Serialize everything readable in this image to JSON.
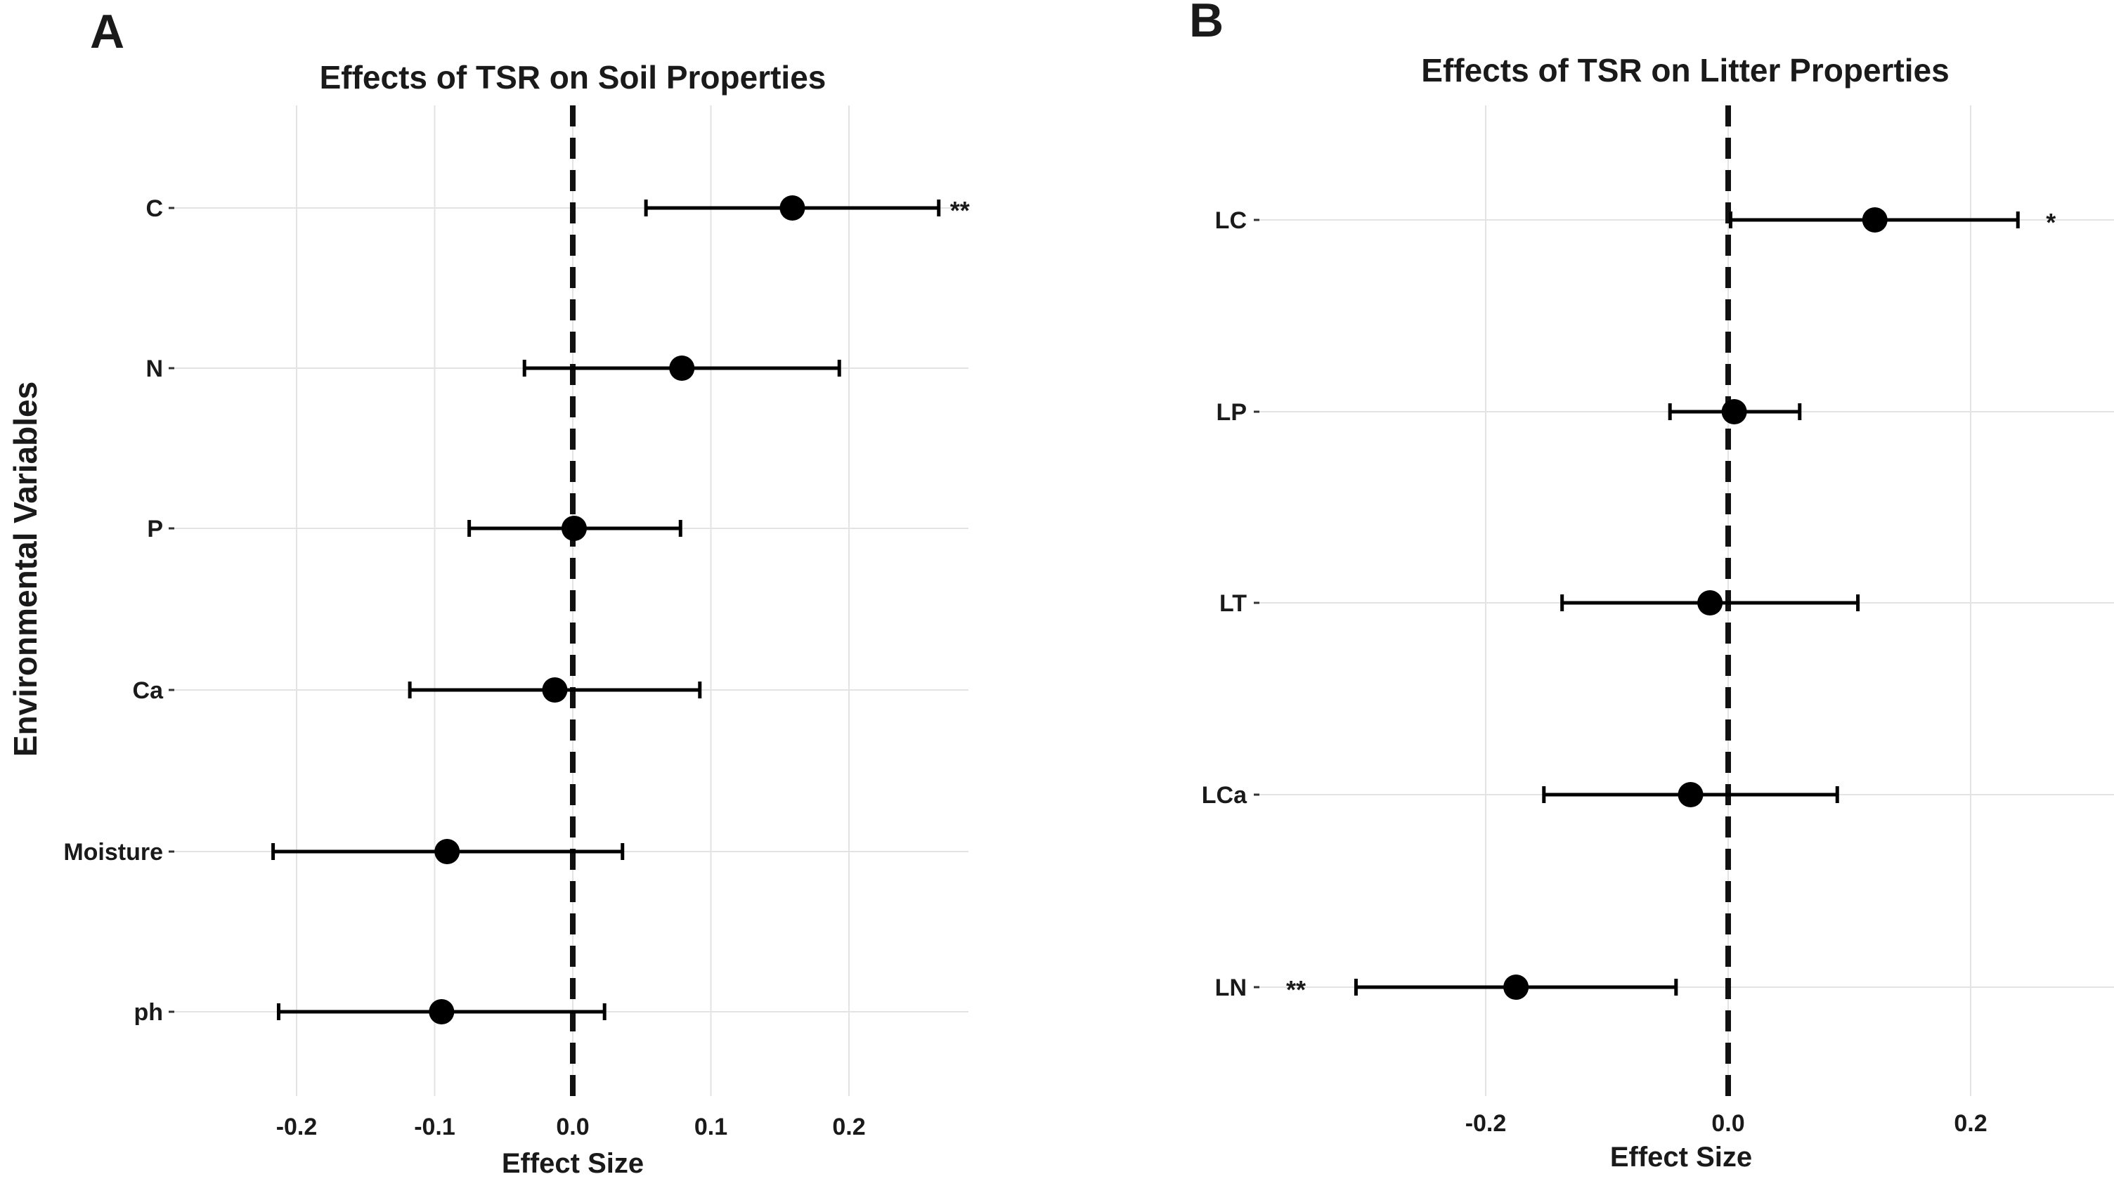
{
  "ylabel_shared": "Environmental Variables",
  "chart_data": [
    {
      "panel_label": "A",
      "type": "forest",
      "title": "Effects of TSR on Soil Properties",
      "xlabel": "Effect Size",
      "ylabel": "Environmental Variables",
      "xlim": [
        -0.29,
        0.29
      ],
      "xticks": [
        -0.2,
        -0.1,
        0.0,
        0.1,
        0.2
      ],
      "xtick_labels": [
        "-0.2",
        "-0.1",
        "0.0",
        "0.1",
        "0.2"
      ],
      "reference_line": 0.0,
      "grid": true,
      "rows": [
        {
          "label": "C",
          "estimate": 0.159,
          "lower": 0.053,
          "upper": 0.265,
          "sig": "**"
        },
        {
          "label": "N",
          "estimate": 0.079,
          "lower": -0.035,
          "upper": 0.193,
          "sig": ""
        },
        {
          "label": "P",
          "estimate": 0.001,
          "lower": -0.075,
          "upper": 0.078,
          "sig": ""
        },
        {
          "label": "Ca",
          "estimate": -0.013,
          "lower": -0.118,
          "upper": 0.092,
          "sig": ""
        },
        {
          "label": "Moisture",
          "estimate": -0.091,
          "lower": -0.217,
          "upper": 0.036,
          "sig": ""
        },
        {
          "label": "ph",
          "estimate": -0.095,
          "lower": -0.213,
          "upper": 0.023,
          "sig": ""
        }
      ]
    },
    {
      "panel_label": "B",
      "type": "forest",
      "title": "Effects of TSR on Litter Properties",
      "xlabel": "Effect Size",
      "xlim": [
        -0.39,
        0.32
      ],
      "xticks": [
        -0.2,
        0.0,
        0.2
      ],
      "xtick_labels": [
        "-0.2",
        "0.0",
        "0.2"
      ],
      "reference_line": 0.0,
      "grid": true,
      "rows": [
        {
          "label": "LC",
          "estimate": 0.121,
          "lower": 0.002,
          "upper": 0.239,
          "sig": "*"
        },
        {
          "label": "LP",
          "estimate": 0.005,
          "lower": -0.048,
          "upper": 0.059,
          "sig": ""
        },
        {
          "label": "LT",
          "estimate": -0.015,
          "lower": -0.137,
          "upper": 0.107,
          "sig": ""
        },
        {
          "label": "LCa",
          "estimate": -0.031,
          "lower": -0.152,
          "upper": 0.09,
          "sig": ""
        },
        {
          "label": "LN",
          "estimate": -0.175,
          "lower": -0.307,
          "upper": -0.043,
          "sig": "**"
        }
      ]
    }
  ]
}
